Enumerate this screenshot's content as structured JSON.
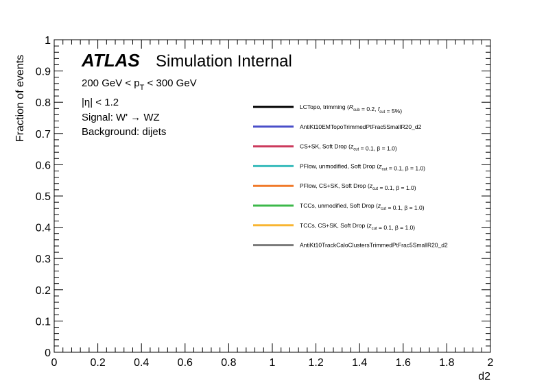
{
  "chart_data": {
    "type": "line",
    "xlabel": "d2",
    "ylabel": "Fraction of events",
    "xlim": [
      0,
      2
    ],
    "ylim": [
      0,
      1
    ],
    "x_ticks": [
      "0",
      "0.2",
      "0.4",
      "0.6",
      "0.8",
      "1",
      "1.2",
      "1.4",
      "1.6",
      "1.8",
      "2"
    ],
    "y_ticks": [
      "0",
      "0.1",
      "0.2",
      "0.3",
      "0.4",
      "0.5",
      "0.6",
      "0.7",
      "0.8",
      "0.9",
      "1"
    ],
    "grid": false,
    "legend_position": "right",
    "series": [
      {
        "name": "LCTopo, trimming (R_sub = 0.2, f_cut = 5%)",
        "color": "#000000",
        "values": []
      },
      {
        "name": "AntiKt10EMTopoTrimmedPtFrac5SmallR20_d2",
        "color": "#4a4fc9",
        "values": []
      },
      {
        "name": "CS+SK, Soft Drop (z_cut = 0.1, β = 1.0)",
        "color": "#cc3a5c",
        "values": []
      },
      {
        "name": "PFlow, unmodified, Soft Drop (z_cut = 0.1, β = 1.0)",
        "color": "#3bbcbc",
        "values": []
      },
      {
        "name": "PFlow, CS+SK, Soft Drop (z_cut = 0.1, β = 1.0)",
        "color": "#f07a2a",
        "values": []
      },
      {
        "name": "TCCs, unmodified, Soft Drop (z_cut = 0.1, β = 1.0)",
        "color": "#3cb84a",
        "values": []
      },
      {
        "name": "TCCs, CS+SK, Soft Drop (z_cut = 0.1, β = 1.0)",
        "color": "#f8b531",
        "values": []
      },
      {
        "name": "AntiKt10TrackCaloClustersTrimmedPtFrac5SmallR20_d2",
        "color": "#7a7a7a",
        "values": []
      }
    ]
  },
  "annotations": {
    "atlas": "ATLAS",
    "atlas_suffix": "Simulation Internal",
    "pt_range_pre": "200 GeV < p",
    "pt_range_sub": "T",
    "pt_range_post": " < 300 GeV",
    "eta_cut": "|η| < 1.2",
    "signal": "Signal: W' → WZ",
    "background": "Background: dijets"
  }
}
